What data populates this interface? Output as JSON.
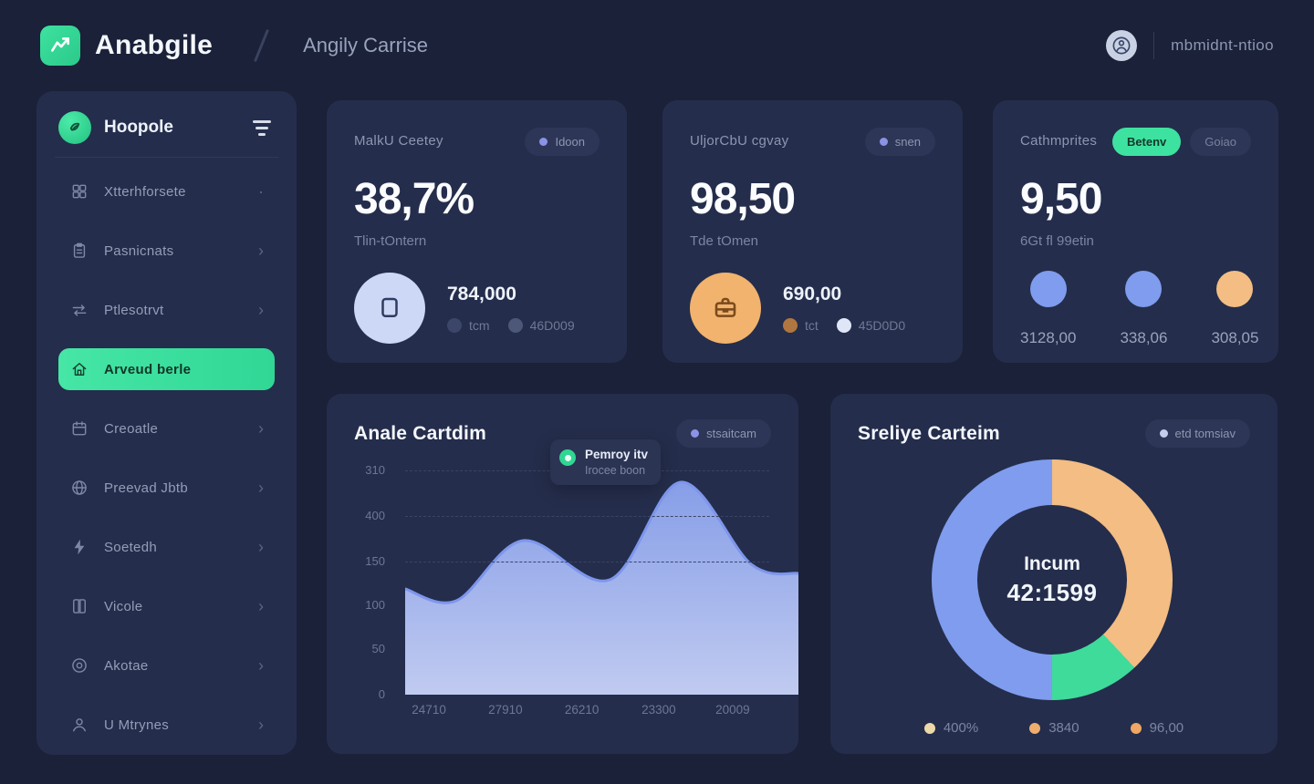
{
  "colors": {
    "accent_green": "#3ee2a0",
    "purple": "#8b93e6",
    "blue": "#7f9cee",
    "orange": "#f3bd83",
    "card_bg": "#242d4b",
    "page_bg": "#1a2138"
  },
  "header": {
    "brand": "Anabgile",
    "page_title": "Angily Carrise",
    "user_label": "mbmidnt-ntioo"
  },
  "sidebar": {
    "title": "Hoopole",
    "items": [
      {
        "label": "Xtterhforsete",
        "icon": "grid-icon",
        "trailing": "·",
        "active": false
      },
      {
        "label": "Pasnicnats",
        "icon": "clipboard-icon",
        "trailing": "›",
        "active": false
      },
      {
        "label": "Ptlesotrvt",
        "icon": "transfer-icon",
        "trailing": "›",
        "active": false
      },
      {
        "label": "Arveud berle",
        "icon": "home-icon",
        "trailing": "",
        "active": true
      },
      {
        "label": "Creoatle",
        "icon": "calendar-icon",
        "trailing": "›",
        "active": false
      },
      {
        "label": "Preevad Jbtb",
        "icon": "globe-icon",
        "trailing": "›",
        "active": false
      },
      {
        "label": "Soetedh",
        "icon": "bolt-icon",
        "trailing": "›",
        "active": false
      },
      {
        "label": "Vicole",
        "icon": "book-icon",
        "trailing": "›",
        "active": false
      },
      {
        "label": "Akotae",
        "icon": "disc-icon",
        "trailing": "›",
        "active": false
      },
      {
        "label": "U Mtrynes",
        "icon": "user-icon",
        "trailing": "›",
        "active": false
      }
    ]
  },
  "stat_cards": [
    {
      "title": "MalkU Ceetey",
      "badge": "Idoon",
      "value": "38,7%",
      "subtitle": "Tlin-tOntern",
      "icon": "document-icon",
      "icon_bg": "#ccd8f6",
      "amount": "784,000",
      "legend": [
        {
          "label": "tcm",
          "color": "#3c4668"
        },
        {
          "label": "46D009",
          "color": "#4d5878"
        }
      ]
    },
    {
      "title": "UljorCbU cgvay",
      "badge": "snen",
      "value": "98,50",
      "subtitle": "Tde tOmen",
      "icon": "briefcase-icon",
      "icon_bg": "#f1b36e",
      "amount": "690,00",
      "legend": [
        {
          "label": "tct",
          "color": "#b0763f"
        },
        {
          "label": "45D0D0",
          "color": "#dfe6f8"
        }
      ]
    },
    {
      "title": "Cathmprites",
      "badge_primary": "Betenv",
      "badge_secondary": "Goiao",
      "value": "9,50",
      "subtitle": "6Gt fl 99etin",
      "circles": [
        {
          "label": "3128,00",
          "color": "#7f9cee"
        },
        {
          "label": "338,06",
          "color": "#7f9cee"
        },
        {
          "label": "308,05",
          "color": "#f3bd83"
        }
      ]
    }
  ],
  "chart_data": [
    {
      "type": "area",
      "title": "Anale Cartdim",
      "badge": "stsaitcam",
      "tooltip": {
        "title": "Pemroy itv",
        "subtitle": "Irocee boon"
      },
      "y_ticks": [
        "310",
        "400",
        "150",
        "100",
        "50",
        "0"
      ],
      "x_ticks": [
        "24710",
        "27910",
        "26210",
        "23300",
        "20009"
      ],
      "points": [
        [
          0,
          116
        ],
        [
          0.13,
          103
        ],
        [
          0.3,
          169
        ],
        [
          0.52,
          126
        ],
        [
          0.7,
          233
        ],
        [
          0.88,
          143
        ],
        [
          1,
          133
        ]
      ],
      "ylim": [
        0,
        250
      ],
      "grid": "dashed",
      "legend_position": "top-right",
      "fill_top": "#8ca4f0",
      "fill_bottom": "#c9d3f9",
      "stroke": "#7d96ec"
    },
    {
      "type": "donut",
      "title": "Sreliye Carteim",
      "badge": "etd tomsiav",
      "center_label": "Incum",
      "center_value": "42:1599",
      "slices": [
        {
          "color": "#f3bd83",
          "pct": 38
        },
        {
          "color": "#3edb9b",
          "pct": 12
        },
        {
          "color": "#7f9cee",
          "pct": 50
        }
      ],
      "legend": [
        {
          "label": "400%",
          "color": "#ecd9a9"
        },
        {
          "label": "3840",
          "color": "#f0ae6e"
        },
        {
          "label": "96,00",
          "color": "#efa763"
        }
      ],
      "legend_position": "bottom"
    }
  ]
}
